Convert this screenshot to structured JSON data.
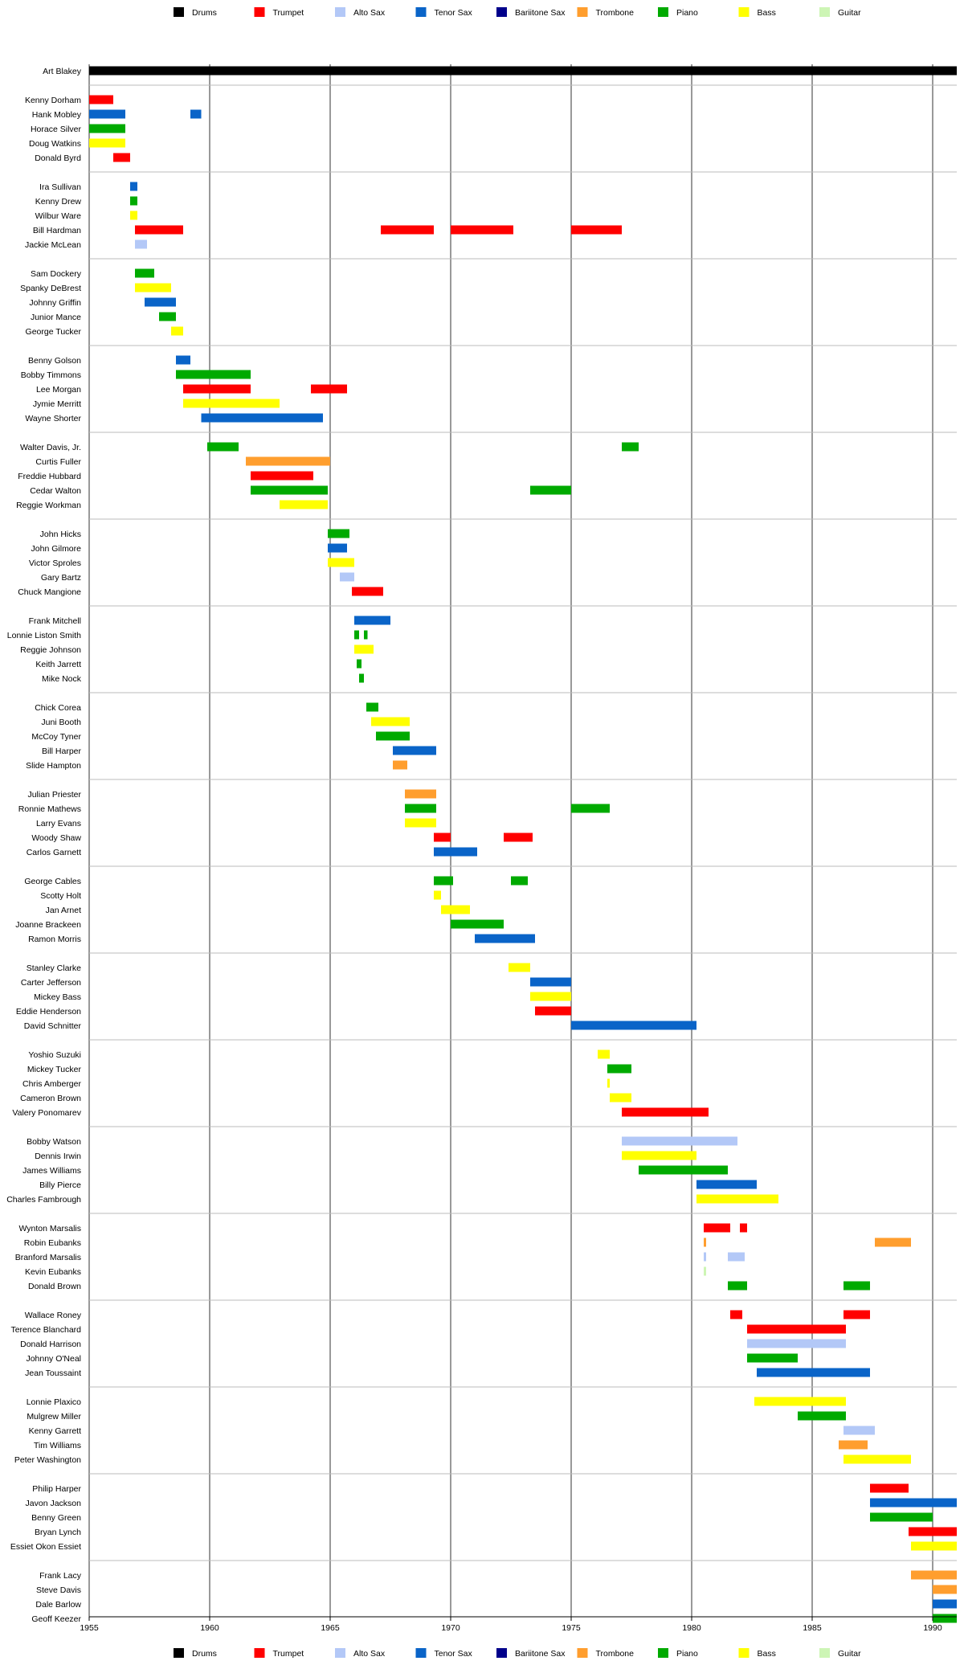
{
  "chart_data": {
    "type": "timeline",
    "title": "",
    "xlabel": "",
    "ylabel": "",
    "xlim": [
      1955,
      1991
    ],
    "x_ticks": [
      1955,
      1960,
      1965,
      1970,
      1975,
      1980,
      1985,
      1990
    ],
    "grid": "vertical lines at 5-year ticks; horizontal separators between groups",
    "legend_position": "top-center and bottom-center",
    "legend": [
      {
        "name": "Drums",
        "color": "#000000"
      },
      {
        "name": "Trumpet",
        "color": "#ff0000"
      },
      {
        "name": "Alto Sax",
        "color": "#b3c8f7"
      },
      {
        "name": "Tenor Sax",
        "color": "#0a64c8"
      },
      {
        "name": "Bariitone Sax",
        "color": "#00008b"
      },
      {
        "name": "Trombone",
        "color": "#ff9e2e"
      },
      {
        "name": "Piano",
        "color": "#00aa00"
      },
      {
        "name": "Bass",
        "color": "#ffff00"
      },
      {
        "name": "Guitar",
        "color": "#cdf5b5"
      }
    ],
    "groups": [
      [
        {
          "name": "Art Blakey",
          "instrument": "Drums",
          "spans": [
            [
              1955,
              1991
            ]
          ]
        }
      ],
      [
        {
          "name": "Kenny Dorham",
          "instrument": "Trumpet",
          "spans": [
            [
              1955,
              1956
            ]
          ]
        },
        {
          "name": "Hank Mobley",
          "instrument": "Tenor Sax",
          "spans": [
            [
              1955,
              1956.5
            ],
            [
              1959.2,
              1959.65
            ]
          ]
        },
        {
          "name": "Horace Silver",
          "instrument": "Piano",
          "spans": [
            [
              1955,
              1956.5
            ]
          ]
        },
        {
          "name": "Doug Watkins",
          "instrument": "Bass",
          "spans": [
            [
              1955,
              1956.5
            ]
          ]
        },
        {
          "name": "Donald Byrd",
          "instrument": "Trumpet",
          "spans": [
            [
              1956,
              1956.7
            ]
          ]
        }
      ],
      [
        {
          "name": "Ira Sullivan",
          "instrument": "Tenor Sax",
          "spans": [
            [
              1956.7,
              1957
            ]
          ]
        },
        {
          "name": "Kenny Drew",
          "instrument": "Piano",
          "spans": [
            [
              1956.7,
              1957
            ]
          ]
        },
        {
          "name": "Wilbur Ware",
          "instrument": "Bass",
          "spans": [
            [
              1956.7,
              1957
            ]
          ]
        },
        {
          "name": "Bill Hardman",
          "instrument": "Trumpet",
          "spans": [
            [
              1956.9,
              1958.9
            ],
            [
              1967.1,
              1969.3
            ],
            [
              1970,
              1972.6
            ],
            [
              1975,
              1977.1
            ]
          ]
        },
        {
          "name": "Jackie McLean",
          "instrument": "Alto Sax",
          "spans": [
            [
              1956.9,
              1957.4
            ]
          ]
        }
      ],
      [
        {
          "name": "Sam Dockery",
          "instrument": "Piano",
          "spans": [
            [
              1956.9,
              1957.7
            ]
          ]
        },
        {
          "name": "Spanky DeBrest",
          "instrument": "Bass",
          "spans": [
            [
              1956.9,
              1958.4
            ]
          ]
        },
        {
          "name": "Johnny Griffin",
          "instrument": "Tenor Sax",
          "spans": [
            [
              1957.3,
              1958.6
            ]
          ]
        },
        {
          "name": "Junior Mance",
          "instrument": "Piano",
          "spans": [
            [
              1957.9,
              1958.6
            ]
          ]
        },
        {
          "name": "George Tucker",
          "instrument": "Bass",
          "spans": [
            [
              1958.4,
              1958.9
            ]
          ]
        }
      ],
      [
        {
          "name": "Benny Golson",
          "instrument": "Tenor Sax",
          "spans": [
            [
              1958.6,
              1959.2
            ]
          ]
        },
        {
          "name": "Bobby Timmons",
          "instrument": "Piano",
          "spans": [
            [
              1958.6,
              1961.7
            ]
          ]
        },
        {
          "name": "Lee Morgan",
          "instrument": "Trumpet",
          "spans": [
            [
              1958.9,
              1961.7
            ],
            [
              1964.2,
              1965.7
            ]
          ]
        },
        {
          "name": "Jymie Merritt",
          "instrument": "Bass",
          "spans": [
            [
              1958.9,
              1962.9
            ]
          ]
        },
        {
          "name": "Wayne Shorter",
          "instrument": "Tenor Sax",
          "spans": [
            [
              1959.65,
              1964.7
            ]
          ]
        }
      ],
      [
        {
          "name": "Walter Davis, Jr.",
          "instrument": "Piano",
          "spans": [
            [
              1959.9,
              1961.2
            ],
            [
              1977.1,
              1977.8
            ]
          ]
        },
        {
          "name": "Curtis Fuller",
          "instrument": "Trombone",
          "spans": [
            [
              1961.5,
              1965
            ]
          ]
        },
        {
          "name": "Freddie Hubbard",
          "instrument": "Trumpet",
          "spans": [
            [
              1961.7,
              1964.3
            ]
          ]
        },
        {
          "name": "Cedar Walton",
          "instrument": "Piano",
          "spans": [
            [
              1961.7,
              1964.9
            ],
            [
              1973.3,
              1975
            ]
          ]
        },
        {
          "name": "Reggie Workman",
          "instrument": "Bass",
          "spans": [
            [
              1962.9,
              1964.9
            ]
          ]
        }
      ],
      [
        {
          "name": "John Hicks",
          "instrument": "Piano",
          "spans": [
            [
              1964.9,
              1965.8
            ]
          ]
        },
        {
          "name": "John Gilmore",
          "instrument": "Tenor Sax",
          "spans": [
            [
              1964.9,
              1965.7
            ]
          ]
        },
        {
          "name": "Victor Sproles",
          "instrument": "Bass",
          "spans": [
            [
              1964.9,
              1966
            ]
          ]
        },
        {
          "name": "Gary Bartz",
          "instrument": "Alto Sax",
          "spans": [
            [
              1965.4,
              1966
            ]
          ]
        },
        {
          "name": "Chuck Mangione",
          "instrument": "Trumpet",
          "spans": [
            [
              1965.9,
              1967.2
            ]
          ]
        }
      ],
      [
        {
          "name": "Frank Mitchell",
          "instrument": "Tenor Sax",
          "spans": [
            [
              1966,
              1967.5
            ]
          ]
        },
        {
          "name": "Lonnie Liston Smith",
          "instrument": "Piano",
          "spans": [
            [
              1966,
              1966.2
            ],
            [
              1966.4,
              1966.55
            ]
          ]
        },
        {
          "name": "Reggie Johnson",
          "instrument": "Bass",
          "spans": [
            [
              1966,
              1966.8
            ]
          ]
        },
        {
          "name": "Keith Jarrett",
          "instrument": "Piano",
          "spans": [
            [
              1966.1,
              1966.3
            ]
          ]
        },
        {
          "name": "Mike Nock",
          "instrument": "Piano",
          "spans": [
            [
              1966.2,
              1966.4
            ]
          ]
        }
      ],
      [
        {
          "name": "Chick Corea",
          "instrument": "Piano",
          "spans": [
            [
              1966.5,
              1967
            ]
          ]
        },
        {
          "name": "Juni Booth",
          "instrument": "Bass",
          "spans": [
            [
              1966.7,
              1968.3
            ]
          ]
        },
        {
          "name": "McCoy Tyner",
          "instrument": "Piano",
          "spans": [
            [
              1966.9,
              1968.3
            ]
          ]
        },
        {
          "name": "Bill Harper",
          "instrument": "Tenor Sax",
          "spans": [
            [
              1967.6,
              1969.4
            ]
          ]
        },
        {
          "name": "Slide Hampton",
          "instrument": "Trombone",
          "spans": [
            [
              1967.6,
              1968.2
            ]
          ]
        }
      ],
      [
        {
          "name": "Julian Priester",
          "instrument": "Trombone",
          "spans": [
            [
              1968.1,
              1969.4
            ]
          ]
        },
        {
          "name": "Ronnie Mathews",
          "instrument": "Piano",
          "spans": [
            [
              1968.1,
              1969.4
            ],
            [
              1975,
              1976.6
            ]
          ]
        },
        {
          "name": "Larry Evans",
          "instrument": "Bass",
          "spans": [
            [
              1968.1,
              1969.4
            ]
          ]
        },
        {
          "name": "Woody Shaw",
          "instrument": "Trumpet",
          "spans": [
            [
              1969.3,
              1970
            ],
            [
              1972.2,
              1973.4
            ]
          ]
        },
        {
          "name": "Carlos Garnett",
          "instrument": "Tenor Sax",
          "spans": [
            [
              1969.3,
              1971.1
            ]
          ]
        }
      ],
      [
        {
          "name": "George Cables",
          "instrument": "Piano",
          "spans": [
            [
              1969.3,
              1970.1
            ],
            [
              1972.5,
              1973.2
            ]
          ]
        },
        {
          "name": "Scotty Holt",
          "instrument": "Bass",
          "spans": [
            [
              1969.3,
              1969.6
            ]
          ]
        },
        {
          "name": "Jan Arnet",
          "instrument": "Bass",
          "spans": [
            [
              1969.6,
              1970.8
            ]
          ]
        },
        {
          "name": "Joanne Brackeen",
          "instrument": "Piano",
          "spans": [
            [
              1970,
              1972.2
            ]
          ]
        },
        {
          "name": "Ramon Morris",
          "instrument": "Tenor Sax",
          "spans": [
            [
              1971,
              1973.5
            ]
          ]
        }
      ],
      [
        {
          "name": "Stanley Clarke",
          "instrument": "Bass",
          "spans": [
            [
              1972.4,
              1973.3
            ]
          ]
        },
        {
          "name": "Carter Jefferson",
          "instrument": "Tenor Sax",
          "spans": [
            [
              1973.3,
              1975
            ]
          ]
        },
        {
          "name": "Mickey Bass",
          "instrument": "Bass",
          "spans": [
            [
              1973.3,
              1975
            ]
          ]
        },
        {
          "name": "Eddie Henderson",
          "instrument": "Trumpet",
          "spans": [
            [
              1973.5,
              1975
            ]
          ]
        },
        {
          "name": "David Schnitter",
          "instrument": "Tenor Sax",
          "spans": [
            [
              1975,
              1980.2
            ]
          ]
        }
      ],
      [
        {
          "name": "Yoshio Suzuki",
          "instrument": "Bass",
          "spans": [
            [
              1976.1,
              1976.6
            ]
          ]
        },
        {
          "name": "Mickey Tucker",
          "instrument": "Piano",
          "spans": [
            [
              1976.5,
              1977.5
            ]
          ]
        },
        {
          "name": "Chris Amberger",
          "instrument": "Bass",
          "spans": [
            [
              1976.5,
              1976.6
            ]
          ]
        },
        {
          "name": "Cameron Brown",
          "instrument": "Bass",
          "spans": [
            [
              1976.6,
              1977.5
            ]
          ]
        },
        {
          "name": "Valery Ponomarev",
          "instrument": "Trumpet",
          "spans": [
            [
              1977.1,
              1980.7
            ]
          ]
        }
      ],
      [
        {
          "name": "Bobby Watson",
          "instrument": "Alto Sax",
          "spans": [
            [
              1977.1,
              1981.9
            ]
          ]
        },
        {
          "name": "Dennis Irwin",
          "instrument": "Bass",
          "spans": [
            [
              1977.1,
              1980.2
            ]
          ]
        },
        {
          "name": "James Williams",
          "instrument": "Piano",
          "spans": [
            [
              1977.8,
              1981.5
            ]
          ]
        },
        {
          "name": "Billy Pierce",
          "instrument": "Tenor Sax",
          "spans": [
            [
              1980.2,
              1982.7
            ]
          ]
        },
        {
          "name": "Charles Fambrough",
          "instrument": "Bass",
          "spans": [
            [
              1980.2,
              1983.6
            ]
          ]
        }
      ],
      [
        {
          "name": "Wynton Marsalis",
          "instrument": "Trumpet",
          "spans": [
            [
              1980.5,
              1981.6
            ],
            [
              1982,
              1982.3
            ]
          ]
        },
        {
          "name": "Robin Eubanks",
          "instrument": "Trombone",
          "spans": [
            [
              1980.5,
              1980.6
            ],
            [
              1987.6,
              1989.1
            ]
          ]
        },
        {
          "name": "Branford Marsalis",
          "instrument": "Alto Sax",
          "spans": [
            [
              1980.5,
              1980.6
            ],
            [
              1981.5,
              1982.2
            ]
          ]
        },
        {
          "name": "Kevin Eubanks",
          "instrument": "Guitar",
          "spans": [
            [
              1980.5,
              1980.6
            ]
          ]
        },
        {
          "name": "Donald Brown",
          "instrument": "Piano",
          "spans": [
            [
              1981.5,
              1982.3
            ],
            [
              1986.3,
              1987.4
            ]
          ]
        }
      ],
      [
        {
          "name": "Wallace Roney",
          "instrument": "Trumpet",
          "spans": [
            [
              1981.6,
              1982.1
            ],
            [
              1986.3,
              1987.4
            ]
          ]
        },
        {
          "name": "Terence Blanchard",
          "instrument": "Trumpet",
          "spans": [
            [
              1982.3,
              1986.4
            ]
          ]
        },
        {
          "name": "Donald Harrison",
          "instrument": "Alto Sax",
          "spans": [
            [
              1982.3,
              1986.4
            ]
          ]
        },
        {
          "name": "Johnny O'Neal",
          "instrument": "Piano",
          "spans": [
            [
              1982.3,
              1984.4
            ]
          ]
        },
        {
          "name": "Jean Toussaint",
          "instrument": "Tenor Sax",
          "spans": [
            [
              1982.7,
              1987.4
            ]
          ]
        }
      ],
      [
        {
          "name": "Lonnie Plaxico",
          "instrument": "Bass",
          "spans": [
            [
              1982.6,
              1986.4
            ]
          ]
        },
        {
          "name": "Mulgrew Miller",
          "instrument": "Piano",
          "spans": [
            [
              1984.4,
              1986.4
            ]
          ]
        },
        {
          "name": "Kenny Garrett",
          "instrument": "Alto Sax",
          "spans": [
            [
              1986.3,
              1987.6
            ]
          ]
        },
        {
          "name": "Tim Williams",
          "instrument": "Trombone",
          "spans": [
            [
              1986.1,
              1987.3
            ]
          ]
        },
        {
          "name": "Peter Washington",
          "instrument": "Bass",
          "spans": [
            [
              1986.3,
              1989.1
            ]
          ]
        }
      ],
      [
        {
          "name": "Philip Harper",
          "instrument": "Trumpet",
          "spans": [
            [
              1987.4,
              1989
            ]
          ]
        },
        {
          "name": "Javon Jackson",
          "instrument": "Tenor Sax",
          "spans": [
            [
              1987.4,
              1991
            ]
          ]
        },
        {
          "name": "Benny Green",
          "instrument": "Piano",
          "spans": [
            [
              1987.4,
              1990
            ]
          ]
        },
        {
          "name": "Bryan Lynch",
          "instrument": "Trumpet",
          "spans": [
            [
              1989,
              1991
            ]
          ]
        },
        {
          "name": "Essiet Okon Essiet",
          "instrument": "Bass",
          "spans": [
            [
              1989.1,
              1991
            ]
          ]
        }
      ],
      [
        {
          "name": "Frank Lacy",
          "instrument": "Trombone",
          "spans": [
            [
              1989.1,
              1991
            ]
          ]
        },
        {
          "name": "Steve Davis",
          "instrument": "Trombone",
          "spans": [
            [
              1990,
              1991
            ]
          ]
        },
        {
          "name": "Dale Barlow",
          "instrument": "Tenor Sax",
          "spans": [
            [
              1990,
              1991
            ]
          ]
        },
        {
          "name": "Geoff Keezer",
          "instrument": "Piano",
          "spans": [
            [
              1990,
              1991
            ]
          ]
        }
      ]
    ]
  }
}
